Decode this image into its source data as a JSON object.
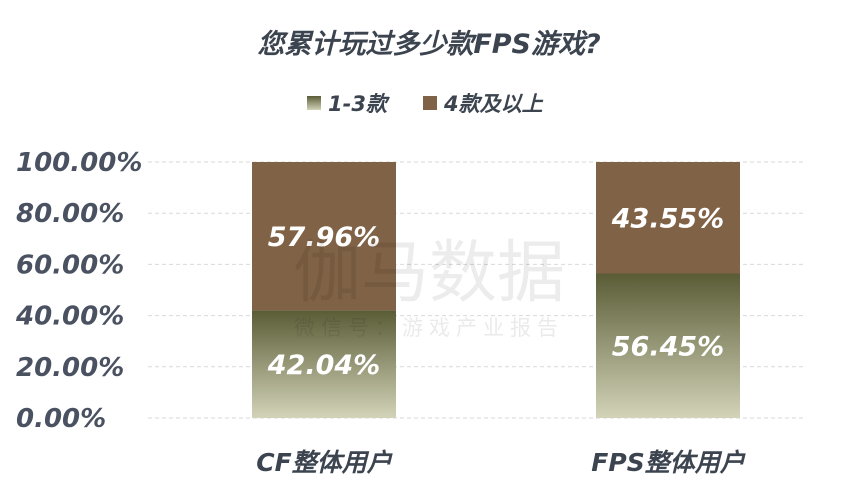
{
  "chart_data": {
    "type": "bar",
    "stacked": true,
    "title": "您累计玩过多少款FPS游戏?",
    "categories": [
      "CF整体用户",
      "FPS整体用户"
    ],
    "series": [
      {
        "name": "1-3款",
        "values": [
          42.04,
          56.45
        ],
        "labels": [
          "42.04%",
          "56.45%"
        ]
      },
      {
        "name": "4款及以上",
        "values": [
          57.96,
          43.55
        ],
        "labels": [
          "57.96%",
          "43.55%"
        ]
      }
    ],
    "ylim": [
      0,
      100
    ],
    "yticks": [
      "0.00%",
      "20.00%",
      "40.00%",
      "60.00%",
      "80.00%",
      "100.00%"
    ],
    "grid": true,
    "legend_position": "top-center",
    "colors": {
      "series_0_top": "#5a5c36",
      "series_0_bottom": "#d2d3b8",
      "series_1": "#806246"
    }
  },
  "watermark": {
    "line1": "伽马数据",
    "line2": "微信号：游戏产业报告"
  }
}
